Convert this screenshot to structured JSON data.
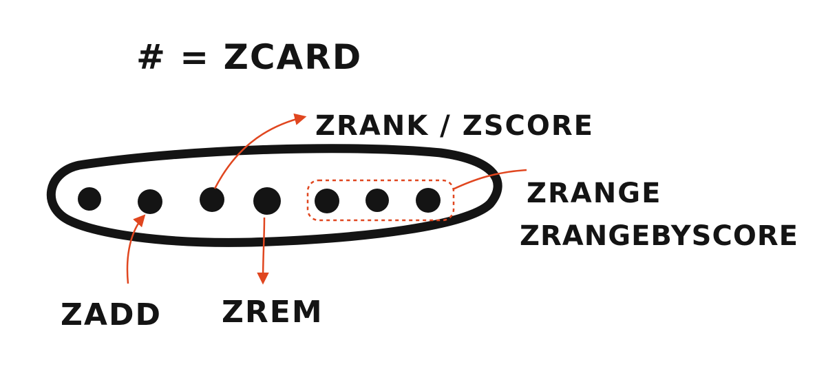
{
  "title": "# = ZCARD",
  "labels": {
    "zrank_zscore": "ZRANK / ZSCORE",
    "zrange": "ZRANGE",
    "zrangebyscore": "ZRANGEBYSCORE",
    "zadd": "ZADD",
    "zrem": "ZREM"
  },
  "set": {
    "member_count": 7,
    "highlighted_range_members": 3
  },
  "colors": {
    "ink": "#141414",
    "accent": "#e0461f"
  }
}
